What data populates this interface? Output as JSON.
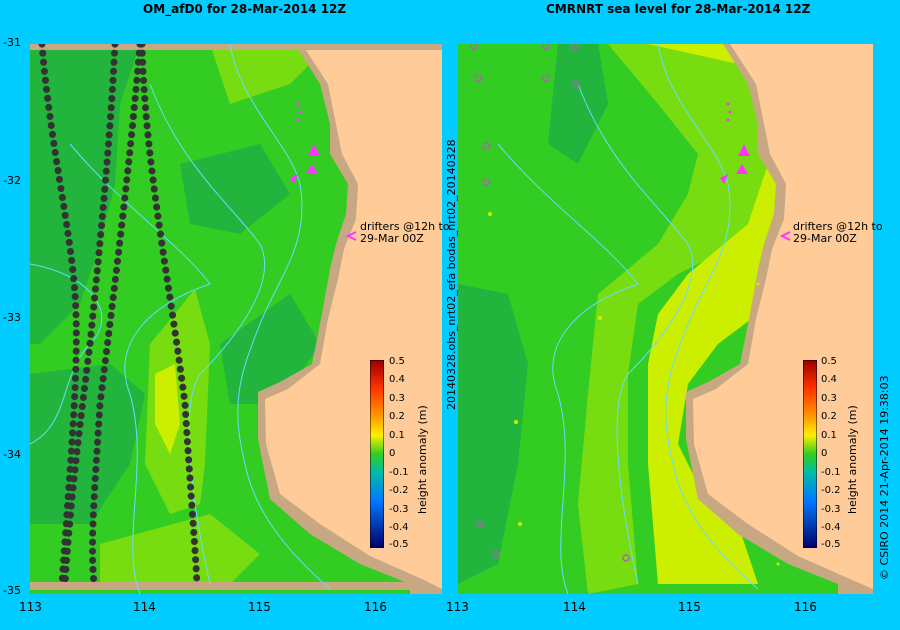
{
  "left_panel": {
    "title": "OM_afD0 for 28-Mar-2014 12Z",
    "annotation_line1": "drifters @12h to",
    "annotation_line2": "29-Mar 00Z",
    "y_ticks": [
      "-31",
      "-32",
      "-33",
      "-34",
      "-35"
    ],
    "x_ticks": [
      "113",
      "114",
      "115",
      "116"
    ]
  },
  "right_panel": {
    "title": "CMRNRT sea level  for 28-Mar-2014 12Z",
    "annotation_line1": "drifters @12h to",
    "annotation_line2": "29-Mar 00Z",
    "x_ticks": [
      "113",
      "114",
      "115",
      "116"
    ],
    "side_label": "20140328.obs_nrt02_efa      bodas_nrt02_20140328"
  },
  "colorbar": {
    "label": "height anomaly (m)",
    "ticks": [
      "0.5",
      "0.4",
      "0.3",
      "0.2",
      "0.1",
      "0",
      "-0.1",
      "-0.2",
      "-0.3",
      "-0.4",
      "-0.5"
    ]
  },
  "credit": "© CSIRO 2014   21-Apr-2014 19:38:03",
  "colors": {
    "background": "#00ccff",
    "land": "#ffcc99",
    "shelf": "#c8a882",
    "level_m01": "#22b43c",
    "level_0": "#33cc22",
    "level_p01": "#77dd11",
    "level_p02": "#ccee00",
    "drifters": "#ff33ff",
    "isobaths": "#66ddff"
  }
}
